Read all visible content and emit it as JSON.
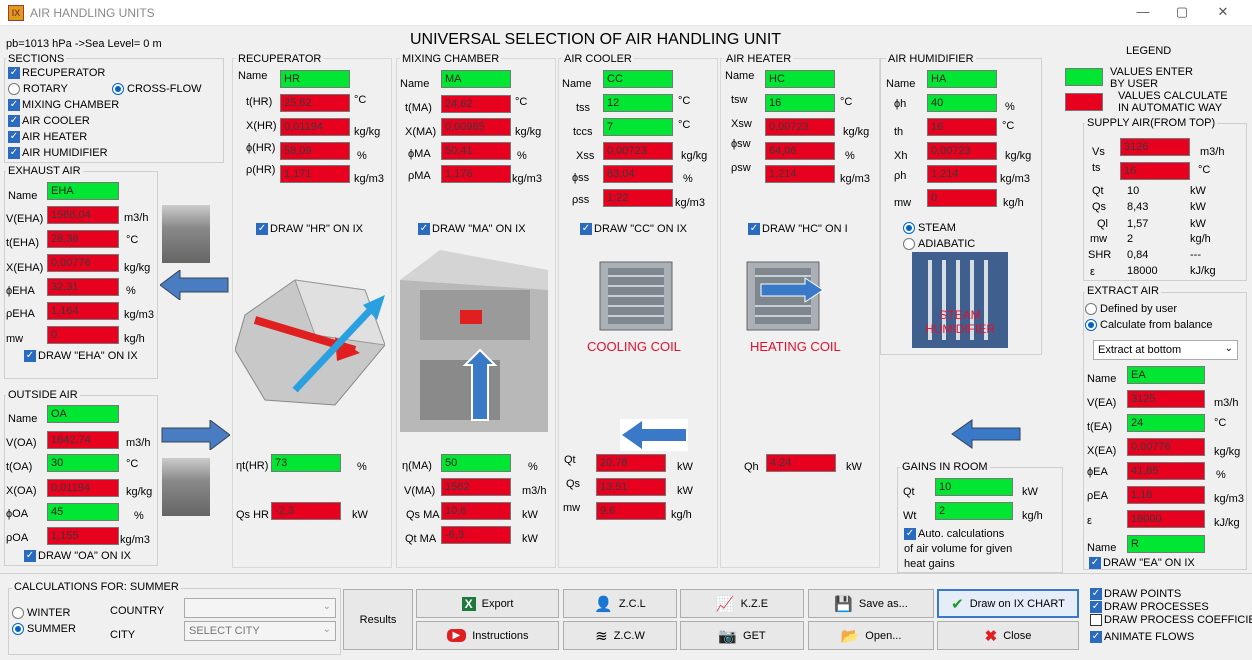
{
  "window": {
    "title": "AIR HANDLING UNITS",
    "app_icon": "ahu-logo-icon"
  },
  "header": {
    "main_title": "UNIVERSAL SELECTION OF AIR HANDLING UNIT",
    "pressure": "pb=1013 hPa  ->Sea Level= 0 m"
  },
  "sections": {
    "title": "SECTIONS",
    "recuperator": "RECUPERATOR",
    "rotary": "ROTARY",
    "crossflow": "CROSS-FLOW",
    "mixing": "MIXING CHAMBER",
    "cooler": "AIR COOLER",
    "heater": "AIR HEATER",
    "humidifier": "AIR HUMIDIFIER"
  },
  "legend": {
    "title": "LEGEND",
    "green": "VALUES ENTER BY USER",
    "red": "VALUES CALCULATE IN AUTOMATIC WAY",
    "green_color": "#00e633",
    "red_color": "#e8001f"
  },
  "exhaust": {
    "title": "EXHAUST AIR",
    "name_l": "Name",
    "name": "EHA",
    "v_l": "V(EHA)",
    "v": "1586,04",
    "v_u": "m3/h",
    "t_l": "t(EHA)",
    "t": "28,38",
    "t_u": "°C",
    "x_l": "X(EHA)",
    "x": "0,00776",
    "x_u": "kg/kg",
    "phi_l": "ϕEHA",
    "phi": "32,31",
    "phi_u": "%",
    "rho_l": "ρEHA",
    "rho": "1,164",
    "rho_u": "kg/m3",
    "mw_l": "mw",
    "mw": "0",
    "mw_u": "kg/h",
    "draw": "DRAW \"EHA\" ON IX"
  },
  "outside": {
    "title": "OUTSIDE AIR",
    "name_l": "Name",
    "name": "OA",
    "v_l": "V(OA)",
    "v": "1642,74",
    "v_u": "m3/h",
    "t_l": "t(OA)",
    "t": "30",
    "t_u": "°C",
    "x_l": "X(OA)",
    "x": "0,01194",
    "x_u": "kg/kg",
    "phi_l": "ϕOA",
    "phi": "45",
    "phi_u": "%",
    "rho_l": "ρOA",
    "rho": "1,155",
    "rho_u": "kg/m3",
    "draw": "DRAW \"OA\" ON IX"
  },
  "recup": {
    "title": "RECUPERATOR",
    "name_l": "Name",
    "name": "HR",
    "t_l": "t(HR)",
    "t": "25,62",
    "t_u": "°C",
    "x_l": "X(HR)",
    "x": "0,01194",
    "x_u": "kg/kg",
    "phi_l": "ϕ(HR)",
    "phi": "58,09",
    "phi_u": "%",
    "rho_l": "ρ(HR)",
    "rho": "1,171",
    "rho_u": "kg/m3",
    "draw": "DRAW \"HR\" ON IX",
    "eta_l": "ηt(HR)",
    "eta": "73",
    "eta_u": "%",
    "qs_l": "Qs HR",
    "qs": "-2,3",
    "qs_u": "kW"
  },
  "mixing": {
    "title": "MIXING CHAMBER",
    "name_l": "Name",
    "name": "MA",
    "t_l": "t(MA)",
    "t": "24,62",
    "t_u": "°C",
    "x_l": "X(MA)",
    "x": "0,00985",
    "x_u": "kg/kg",
    "phi_l": "ϕMA",
    "phi": "50,41",
    "phi_u": "%",
    "rho_l": "ρMA",
    "rho": "1,176",
    "rho_u": "kg/m3",
    "draw": "DRAW \"MA\" ON IX",
    "eta_l": "η(MA)",
    "eta": "50",
    "eta_u": "%",
    "v_l": "V(MA)",
    "v": "1562",
    "v_u": "m3/h",
    "qs_l": "Qs MA",
    "qs": "10,6",
    "qs_u": "kW",
    "qt_l": "Qt MA",
    "qt": "-6,3",
    "qt_u": "kW"
  },
  "cooler": {
    "title": "AIR COOLER",
    "name_l": "Name",
    "name": "CC",
    "tss_l": "tss",
    "tss": "12",
    "tss_u": "°C",
    "tccs_l": "tccs",
    "tccs": "7",
    "tccs_u": "°C",
    "xss_l": "Xss",
    "xss": "0,00723",
    "xss_u": "kg/kg",
    "phi_l": "ϕss",
    "phi": "83,04",
    "phi_u": "%",
    "rho_l": "ρss",
    "rho": "1,22",
    "rho_u": "kg/m3",
    "draw": "DRAW \"CC\" ON IX",
    "caption": "COOLING COIL",
    "qt_l": "Qt",
    "qt": "20,78",
    "qt_u": "kW",
    "qs_l": "Qs",
    "qs": "13,51",
    "qs_u": "kW",
    "mw_l": "mw",
    "mw": "9,6",
    "mw_u": "kg/h"
  },
  "heater": {
    "title": "AIR HEATER",
    "name_l": "Name",
    "name": "HC",
    "tsw_l": "tsw",
    "tsw": "16",
    "tsw_u": "°C",
    "xsw_l": "Xsw",
    "xsw": "0,00723",
    "xsw_u": "kg/kg",
    "phi_l": "ϕsw",
    "phi": "64,06",
    "phi_u": "%",
    "rho_l": "ρsw",
    "rho": "1,214",
    "rho_u": "kg/m3",
    "draw": "DRAW \"HC\" ON I",
    "caption": "HEATING COIL",
    "qh_l": "Qh",
    "qh": "4,24",
    "qh_u": "kW"
  },
  "humid": {
    "title": "AIR HUMIDIFIER",
    "name_l": "Name",
    "name": "HA",
    "phi_l": "ϕh",
    "phi": "40",
    "phi_u": "%",
    "th_l": "th",
    "th": "16",
    "th_u": "°C",
    "xh_l": "Xh",
    "xh": "0,00723",
    "xh_u": "kg/kg",
    "rho_l": "ρh",
    "rho": "1,214",
    "rho_u": "kg/m3",
    "mw_l": "mw",
    "mw": "0",
    "mw_u": "kg/h",
    "steam": "STEAM",
    "adiabatic": "ADIABATIC",
    "caption": "STEAM HUMIDIFIER"
  },
  "supply": {
    "title": "SUPPLY AIR(FROM TOP)",
    "vs_l": "Vs",
    "vs": "3126",
    "vs_u": "m3/h",
    "ts_l": "ts",
    "ts": "16",
    "ts_u": "°C",
    "qt_l": "Qt",
    "qt": "10",
    "qt_u": "kW",
    "qs_l": "Qs",
    "qs": "8,43",
    "qs_u": "kW",
    "ql_l": "Ql",
    "ql": "1,57",
    "ql_u": "kW",
    "mw_l": "mw",
    "mw": "2",
    "mw_u": "kg/h",
    "shr_l": "SHR",
    "shr": "0,84",
    "shr_u": "---",
    "eps_l": "ε",
    "eps": "18000",
    "eps_u": "kJ/kg"
  },
  "extract": {
    "title": "EXTRACT AIR",
    "opt1": "Defined by user",
    "opt2": "Calculate from balance",
    "select": "Extract at bottom",
    "name_l": "Name",
    "name": "EA",
    "v_l": "V(EA)",
    "v": "3125",
    "v_u": "m3/h",
    "t_l": "t(EA)",
    "t": "24",
    "t_u": "°C",
    "x_l": "X(EA)",
    "x": "0,00776",
    "x_u": "kg/kg",
    "phi_l": "ϕEA",
    "phi": "41,85",
    "phi_u": "%",
    "rho_l": "ρEA",
    "rho": "1,18",
    "rho_u": "kg/m3",
    "eps_l": "ε",
    "eps": "18000",
    "eps_u": "kJ/kg",
    "name2_l": "Name",
    "name2": "R",
    "draw": "DRAW \"EA\" ON IX"
  },
  "gains": {
    "title": "GAINS IN ROOM",
    "qt_l": "Qt",
    "qt": "10",
    "qt_u": "kW",
    "wt_l": "Wt",
    "wt": "2",
    "wt_u": "kg/h",
    "auto": "Auto. calculations of air volume for given heat gains"
  },
  "calc": {
    "title": "CALCULATIONS FOR: SUMMER",
    "winter": "WINTER",
    "summer": "SUMMER",
    "country_l": "COUNTRY",
    "city_l": "CITY",
    "city_ph": "SELECT CITY"
  },
  "buttons": {
    "results": "Results",
    "export": "Export",
    "instructions": "Instructions",
    "zcl": "Z.C.L",
    "zcw": "Z.C.W",
    "kze": "K.Z.E",
    "get": "GET",
    "saveas": "Save as...",
    "open": "Open...",
    "drawix": "Draw on IX CHART",
    "close": "Close"
  },
  "draw_opts": {
    "points": "DRAW POINTS",
    "processes": "DRAW PROCESSES",
    "coeff": "DRAW PROCESS COEFFICIE",
    "animate": "ANIMATE FLOWS"
  }
}
